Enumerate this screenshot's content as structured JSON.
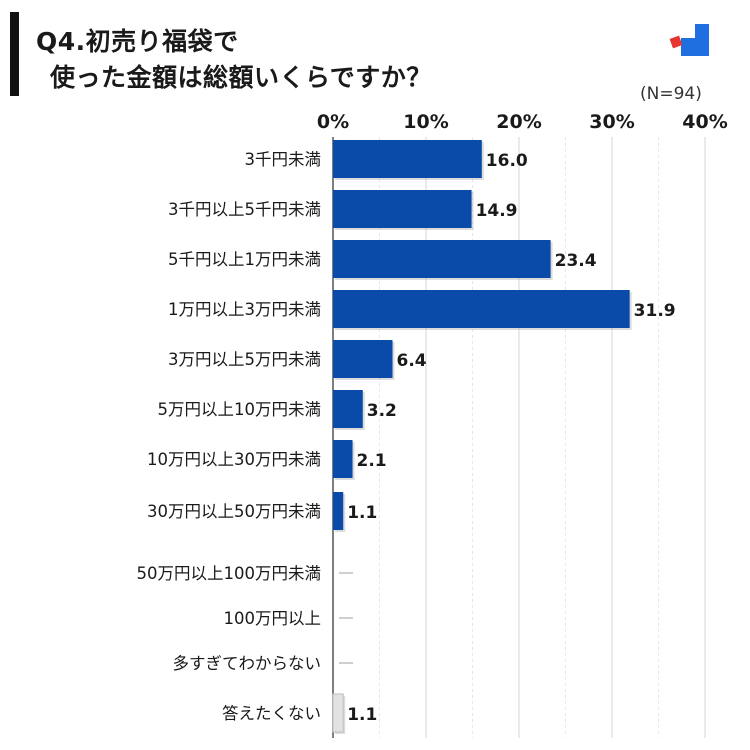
{
  "chart_data": {
    "type": "bar",
    "orientation": "horizontal",
    "title_line1": "Q4.初売り福袋で",
    "title_line2": "使った金額は総額いくらですか？",
    "sample_size": "(N=94)",
    "x_ticks": [
      "0%",
      "10%",
      "20%",
      "30%",
      "40%"
    ],
    "xlim": [
      0,
      40
    ],
    "grid": true,
    "bar_color": "#0a4aa8",
    "secondary_bar_color": "#e2e2e2",
    "categories": [
      "3千円未満",
      "3千円以上5千円未満",
      "5千円以上1万円未満",
      "1万円以上3万円未満",
      "3万円以上5万円未満",
      "5万円以上10万円未満",
      "10万円以上30万円未満",
      "30万円以上50万円未満",
      "50万円以上100万円未満",
      "100万円以上",
      "多すぎてわからない",
      "答えたくない"
    ],
    "values": [
      16.0,
      14.9,
      23.4,
      31.9,
      6.4,
      3.2,
      2.1,
      1.1,
      0,
      0,
      0,
      1.1
    ],
    "value_labels": [
      "16.0",
      "14.9",
      "23.4",
      "31.9",
      "6.4",
      "3.2",
      "2.1",
      "1.1",
      "",
      "",
      "",
      "1.1"
    ]
  },
  "colors": {
    "logo_blue": "#1f6fe0",
    "logo_red": "#e5362f"
  }
}
